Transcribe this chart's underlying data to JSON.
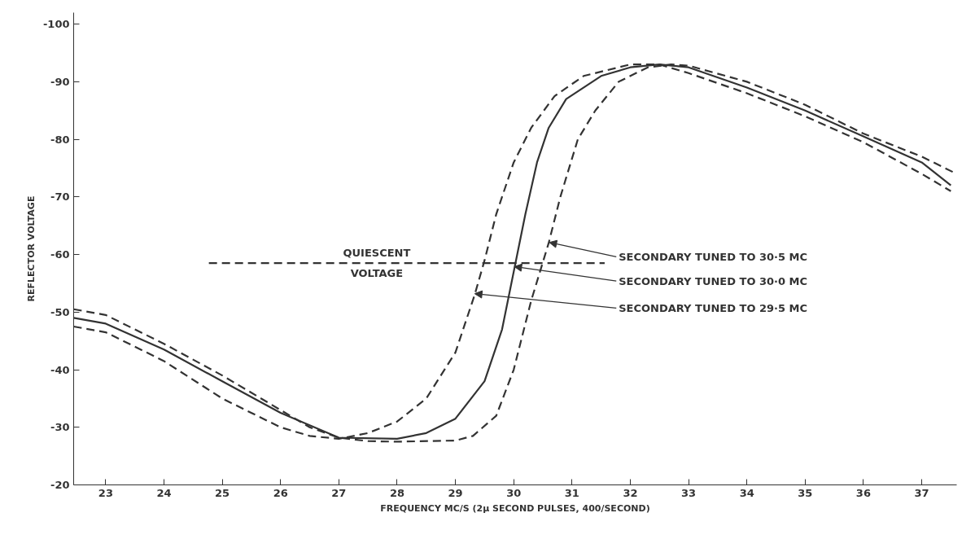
{
  "chart_data": {
    "type": "line",
    "xlabel": "FREQUENCY MC/S (2μ SECOND PULSES, 400/SECOND)",
    "ylabel": "REFLECTOR VOLTAGE",
    "xlim": [
      22.45,
      37.6
    ],
    "ylim": [
      -20,
      -102
    ],
    "xticks": [
      23,
      24,
      25,
      26,
      27,
      28,
      29,
      30,
      31,
      32,
      33,
      34,
      35,
      36,
      37
    ],
    "yticks": [
      -20,
      -30,
      -40,
      -50,
      -60,
      -70,
      -80,
      -90,
      -100
    ],
    "grid": false,
    "marker": "none",
    "series": [
      {
        "color": "#333333",
        "line_style": "dashed",
        "x": [
          22.45,
          23,
          24,
          25,
          26,
          26.5,
          27,
          27.5,
          28,
          28.5,
          29,
          29.33,
          29.5,
          29.7,
          30,
          30.3,
          30.7,
          31.2,
          32,
          32.5,
          33,
          34,
          35,
          36,
          37,
          37.5
        ],
        "values": [
          -47.5,
          -46.5,
          -41.5,
          -35,
          -30,
          -28.5,
          -28,
          -29,
          -31,
          -35,
          -43,
          -53,
          -59,
          -67,
          -76,
          -82,
          -87.5,
          -91,
          -93,
          -93,
          -91.5,
          -88,
          -84,
          -79.5,
          -74,
          -71
        ]
      },
      {
        "color": "#333333",
        "line_style": "solid",
        "x": [
          22.45,
          23,
          24,
          25,
          26,
          27,
          28,
          28.5,
          29,
          29.5,
          29.8,
          30,
          30.2,
          30.4,
          30.6,
          30.9,
          31.5,
          32,
          32.5,
          33,
          34,
          35,
          36,
          37,
          37.5
        ],
        "values": [
          -49,
          -48,
          -43.5,
          -38,
          -32.5,
          -28.2,
          -28,
          -29,
          -31.5,
          -38,
          -47,
          -57,
          -67,
          -76,
          -82,
          -87,
          -91,
          -92.5,
          -93,
          -92.5,
          -89,
          -85,
          -80.5,
          -76,
          -72
        ]
      },
      {
        "color": "#333333",
        "line_style": "dashed",
        "x": [
          22.45,
          23,
          24,
          25,
          26,
          26.5,
          27,
          27.5,
          28,
          29,
          29.3,
          29.7,
          30,
          30.3,
          30.6,
          30.8,
          31.1,
          31.4,
          31.8,
          32.3,
          32.7,
          33,
          34,
          35,
          36,
          37,
          37.6
        ],
        "values": [
          -50.5,
          -49.5,
          -44.5,
          -39,
          -33,
          -30,
          -28.2,
          -27.6,
          -27.5,
          -27.7,
          -28.5,
          -32,
          -40,
          -52,
          -62,
          -70,
          -80,
          -85,
          -90,
          -92.5,
          -93,
          -92.8,
          -90,
          -86,
          -81,
          -77,
          -74
        ]
      },
      {
        "color": "#333333",
        "line_style": "dashed",
        "x": [
          24.77,
          31.56
        ],
        "values": [
          -58.5,
          -58.5
        ]
      }
    ],
    "annotations": [
      {
        "text": "QUIESCENT VOLTAGE",
        "x": 27.65,
        "y": -58.5
      },
      {
        "text": "SECONDARY TUNED TO 30·5 MC",
        "x": 30.61,
        "y": -62.1
      },
      {
        "text": "SECONDARY TUNED TO 30·0 MC",
        "x": 30.01,
        "y": -57.9
      },
      {
        "text": "SECONDARY TUNED TO 29·5 MC",
        "x": 29.33,
        "y": -53.2
      }
    ]
  }
}
